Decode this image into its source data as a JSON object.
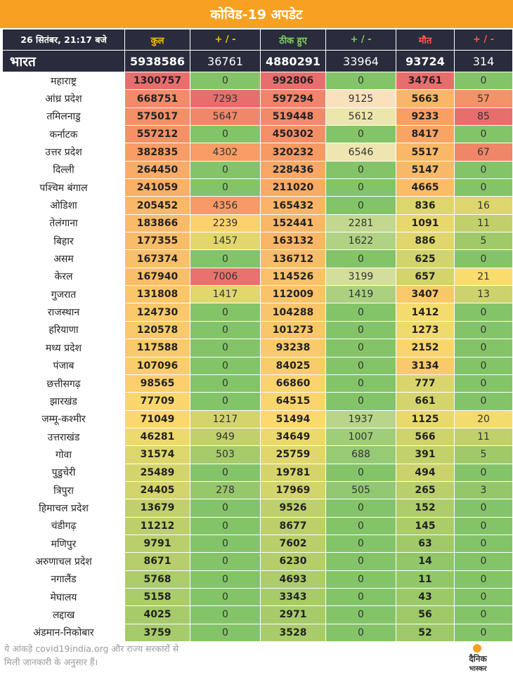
{
  "title": "कोविड-19 अपडेट",
  "header": {
    "date": "26 सितंबर, 21:17 बजे",
    "total": "कुल",
    "delta1": "+ / -",
    "recovered": "ठीक हुए",
    "delta2": "+ / -",
    "deaths": "मौत",
    "delta3": "+ / -"
  },
  "national": {
    "name": "भारत",
    "total": "5938586",
    "total_delta": "36761",
    "recovered": "4880291",
    "recovered_delta": "33964",
    "deaths": "93724",
    "deaths_delta": "314"
  },
  "rows": [
    [
      "महाराष्ट्र",
      "1300757",
      "0",
      "992806",
      "0",
      "34761",
      "0"
    ],
    [
      "आंध्र प्रदेश",
      "668751",
      "7293",
      "597294",
      "9125",
      "5663",
      "57"
    ],
    [
      "तमिलनाडु",
      "575017",
      "5647",
      "519448",
      "5612",
      "9233",
      "85"
    ],
    [
      "कर्नाटक",
      "557212",
      "0",
      "450302",
      "0",
      "8417",
      "0"
    ],
    [
      "उत्तर प्रदेश",
      "382835",
      "4302",
      "320232",
      "6546",
      "5517",
      "67"
    ],
    [
      "दिल्ली",
      "264450",
      "0",
      "228436",
      "0",
      "5147",
      "0"
    ],
    [
      "पश्चिम बंगाल",
      "241059",
      "0",
      "211020",
      "0",
      "4665",
      "0"
    ],
    [
      "ओडिशा",
      "205452",
      "4356",
      "165432",
      "0",
      "836",
      "16"
    ],
    [
      "तेलंगाना",
      "183866",
      "2239",
      "152441",
      "2281",
      "1091",
      "11"
    ],
    [
      "बिहार",
      "177355",
      "1457",
      "163132",
      "1622",
      "886",
      "5"
    ],
    [
      "असम",
      "167374",
      "0",
      "136712",
      "0",
      "625",
      "0"
    ],
    [
      "केरल",
      "167940",
      "7006",
      "114526",
      "3199",
      "657",
      "21"
    ],
    [
      "गुजरात",
      "131808",
      "1417",
      "112009",
      "1419",
      "3407",
      "13"
    ],
    [
      "राजस्थान",
      "124730",
      "0",
      "104288",
      "0",
      "1412",
      "0"
    ],
    [
      "हरियाणा",
      "120578",
      "0",
      "101273",
      "0",
      "1273",
      "0"
    ],
    [
      "मध्य प्रदेश",
      "117588",
      "0",
      "93238",
      "0",
      "2152",
      "0"
    ],
    [
      "पंजाब",
      "107096",
      "0",
      "84025",
      "0",
      "3134",
      "0"
    ],
    [
      "छत्तीसगढ़",
      "98565",
      "0",
      "66860",
      "0",
      "777",
      "0"
    ],
    [
      "झारखंड",
      "77709",
      "0",
      "64515",
      "0",
      "661",
      "0"
    ],
    [
      "जम्मू-कश्मीर",
      "71049",
      "1217",
      "51494",
      "1937",
      "1125",
      "20"
    ],
    [
      "उत्तराखंड",
      "46281",
      "949",
      "34649",
      "1007",
      "566",
      "11"
    ],
    [
      "गोवा",
      "31574",
      "503",
      "25759",
      "688",
      "391",
      "5"
    ],
    [
      "पुडुचेरी",
      "25489",
      "0",
      "19781",
      "0",
      "494",
      "0"
    ],
    [
      "त्रिपुरा",
      "24405",
      "278",
      "17969",
      "505",
      "265",
      "3"
    ],
    [
      "हिमाचल प्रदेश",
      "13679",
      "0",
      "9526",
      "0",
      "152",
      "0"
    ],
    [
      "चंडीगढ़",
      "11212",
      "0",
      "8677",
      "0",
      "145",
      "0"
    ],
    [
      "मणिपुर",
      "9791",
      "0",
      "7602",
      "0",
      "63",
      "0"
    ],
    [
      "अरुणाचल प्रदेश",
      "8671",
      "0",
      "6230",
      "0",
      "14",
      "0"
    ],
    [
      "नगालैंड",
      "5768",
      "0",
      "4693",
      "0",
      "11",
      "0"
    ],
    [
      "मेघालय",
      "5158",
      "0",
      "3343",
      "0",
      "43",
      "0"
    ],
    [
      "लद्दाख",
      "4025",
      "0",
      "2971",
      "0",
      "56",
      "0"
    ],
    [
      "अंडमान-निकोबार",
      "3759",
      "0",
      "3528",
      "0",
      "52",
      "0"
    ]
  ],
  "footer": {
    "line1": "ये आंकड़े covid19india.org और राज्य सरकारों से",
    "line2": "मिली जानकारी के अनुसार हैं।"
  },
  "logo": {
    "line1": "दैनिक",
    "line2": "भास्कर",
    "accent": "#f7a021"
  }
}
